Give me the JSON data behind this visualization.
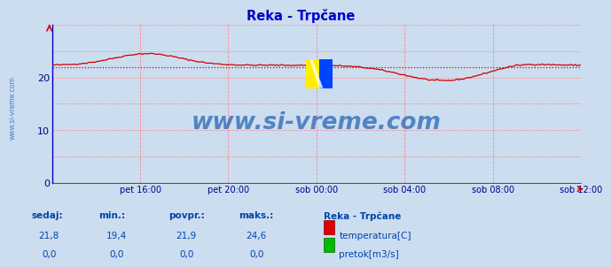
{
  "title": "Reka - Trpčane",
  "fig_bg_color": "#ccddf0",
  "plot_bg_color": "#ccddf0",
  "temp_color": "#cc0000",
  "pretok_color": "#00cc00",
  "avg_color": "#cc0000",
  "grid_color": "#ff8888",
  "axis_color": "#0000cc",
  "tick_color": "#000088",
  "ylim": [
    0,
    30
  ],
  "yticks": [
    0,
    10,
    20
  ],
  "xtick_labels": [
    "pet 16:00",
    "pet 20:00",
    "sob 00:00",
    "sob 04:00",
    "sob 08:00",
    "sob 12:00"
  ],
  "n_points": 288,
  "avg_temp": 21.9,
  "min_temp": 19.4,
  "max_temp": 24.6,
  "sedaj_temp": 21.8,
  "watermark_text": "www.si-vreme.com",
  "watermark_color": "#1155aa",
  "sidebar_text": "www.si-vreme.com",
  "sidebar_color": "#3377cc",
  "footer_color": "#0044aa",
  "footer_headers": [
    "sedaj:",
    "min.:",
    "povpr.:",
    "maks.:"
  ],
  "footer_temp_vals": [
    "21,8",
    "19,4",
    "21,9",
    "24,6"
  ],
  "footer_pretok_vals": [
    "0,0",
    "0,0",
    "0,0",
    "0,0"
  ],
  "legend_title": "Reka - Trpčane",
  "legend_items": [
    "temperatura[C]",
    "pretok[m3/s]"
  ],
  "legend_colors": [
    "#dd0000",
    "#00bb00"
  ]
}
